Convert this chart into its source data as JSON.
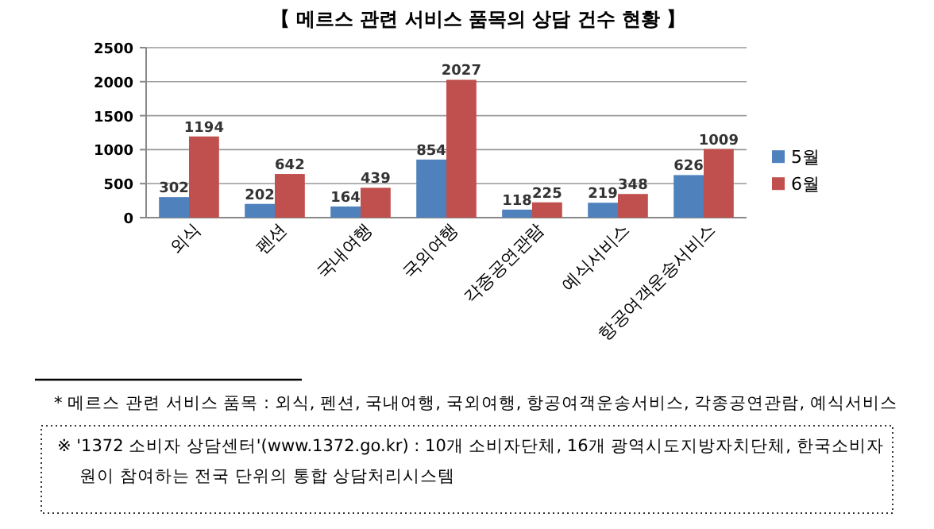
{
  "chart_data": {
    "type": "bar",
    "title": "【 메르스 관련 서비스 품목의 상담 건수 현황 】",
    "categories": [
      "외식",
      "펜션",
      "국내여행",
      "국외여행",
      "각종공연관람",
      "예식서비스",
      "항공여객운송서비스"
    ],
    "series": [
      {
        "name": "5월",
        "color": "#4f81bd",
        "values": [
          302,
          202,
          164,
          854,
          118,
          219,
          626
        ]
      },
      {
        "name": "6월",
        "color": "#c0504d",
        "values": [
          1194,
          642,
          439,
          2027,
          225,
          348,
          1009
        ]
      }
    ],
    "ylim": [
      0,
      2500
    ],
    "yticks": [
      0,
      500,
      1000,
      1500,
      2000,
      2500
    ],
    "grid": "y",
    "legend": "right",
    "data_labels": true,
    "annotations": [
      "* 메르스 관련 서비스 품목 : 외식, 펜션, 국내여행, 국외여행, 항공여객운송서비스, 각종공연관람, 예식서비스",
      "※ '1372 소비자 상담센터'(www.1372.go.kr) : 10개 소비자단체, 16개 광역시도지방자치단체, 한국소비자원이 참여하는 전국 단위의 통합 상담처리시스템"
    ]
  }
}
